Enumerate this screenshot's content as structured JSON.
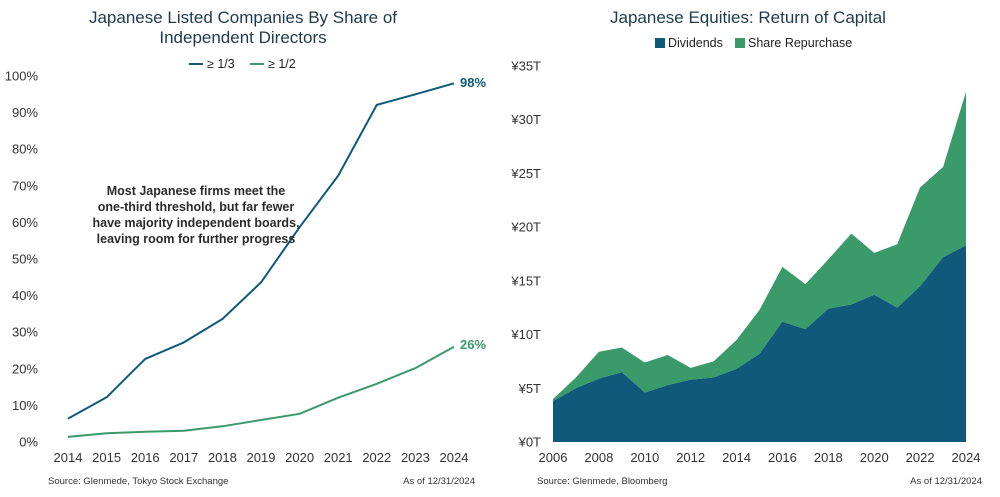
{
  "left_chart": {
    "title_line1": "Japanese Listed Companies By Share of",
    "title_line2": "Independent Directors",
    "legend": [
      "≥ 1/3",
      "≥ 1/2"
    ],
    "annotation": [
      "Most Japanese firms meet the",
      "one-third threshold, but far fewer",
      "have majority independent boards,",
      "leaving room for further progress"
    ],
    "end_labels": [
      "98%",
      "26%"
    ],
    "source": "Source: Glenmede, Tokyo Stock Exchange",
    "as_of": "As of 12/31/2024",
    "y_tick_labels": [
      "0%",
      "10%",
      "20%",
      "30%",
      "40%",
      "50%",
      "60%",
      "70%",
      "80%",
      "90%",
      "100%"
    ],
    "x_tick_labels": [
      "2014",
      "2015",
      "2016",
      "2017",
      "2018",
      "2019",
      "2020",
      "2021",
      "2022",
      "2023",
      "2024"
    ]
  },
  "right_chart": {
    "title": "Japanese Equities: Return of Capital",
    "legend": [
      "Dividends",
      "Share Repurchase"
    ],
    "source": "Source: Glenmede, Bloomberg",
    "as_of": "As of 12/31/2024",
    "y_tick_labels": [
      "¥0T",
      "¥5T",
      "¥10T",
      "¥15T",
      "¥20T",
      "¥25T",
      "¥30T",
      "¥35T"
    ],
    "x_tick_labels": [
      "2006",
      "2008",
      "2010",
      "2012",
      "2014",
      "2016",
      "2018",
      "2020",
      "2022",
      "2024"
    ]
  },
  "colors": {
    "dark_blue": "#0f5a7a",
    "green": "#3a9a6a",
    "title": "#1f3a4d"
  },
  "chart_data": [
    {
      "type": "line",
      "title": "Japanese Listed Companies By Share of Independent Directors",
      "x": [
        2014,
        2015,
        2016,
        2017,
        2018,
        2019,
        2020,
        2021,
        2022,
        2023,
        2024
      ],
      "series": [
        {
          "name": "≥ 1/3",
          "color": "#0f5a7a",
          "values": [
            6.4,
            12.2,
            22.7,
            27.2,
            33.6,
            43.6,
            58.7,
            72.8,
            92.1,
            95.0,
            98.0
          ]
        },
        {
          "name": "≥ 1/2",
          "color": "#3a9a6a",
          "values": [
            1.4,
            2.4,
            2.8,
            3.1,
            4.3,
            6.0,
            7.7,
            12.1,
            15.9,
            20.2,
            26.0
          ]
        }
      ],
      "ylim": [
        0,
        100
      ],
      "y_unit": "%",
      "grid": false,
      "legend": "top"
    },
    {
      "type": "area",
      "title": "Japanese Equities: Return of Capital",
      "x": [
        2006,
        2007,
        2008,
        2009,
        2010,
        2011,
        2012,
        2013,
        2014,
        2015,
        2016,
        2017,
        2018,
        2019,
        2020,
        2021,
        2022,
        2023,
        2024
      ],
      "stacked": true,
      "series": [
        {
          "name": "Dividends",
          "color": "#0f5a7a",
          "values": [
            3.8,
            5.0,
            5.9,
            6.5,
            4.6,
            5.3,
            5.8,
            6.0,
            6.8,
            8.2,
            11.2,
            10.5,
            12.4,
            12.8,
            13.7,
            12.5,
            14.5,
            17.2,
            18.3
          ]
        },
        {
          "name": "Share Repurchase",
          "color": "#3a9a6a",
          "values": [
            0.2,
            1.0,
            2.5,
            2.3,
            2.8,
            2.8,
            1.1,
            1.5,
            2.7,
            4.1,
            5.1,
            4.2,
            4.6,
            6.6,
            3.9,
            5.9,
            9.2,
            8.4,
            14.3
          ]
        }
      ],
      "ylim": [
        0,
        35
      ],
      "y_unit": "¥ trillion",
      "grid": false,
      "legend": "top"
    }
  ]
}
